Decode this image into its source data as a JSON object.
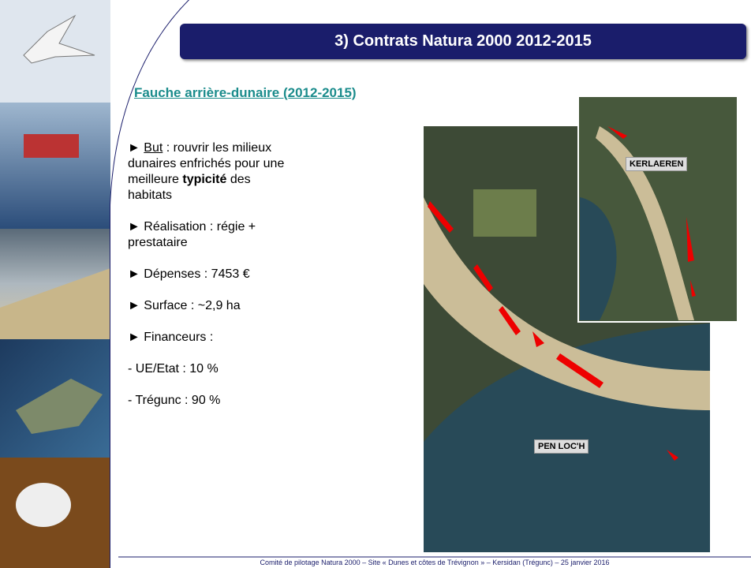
{
  "header": {
    "title": "3) Contrats Natura 2000 2012-2015"
  },
  "section": {
    "title": "Fauche arrière-dunaire (2012-2015)"
  },
  "bullets": [
    {
      "label": "But",
      "text": " : rouvrir les milieux dunaires enfrichés pour une meilleure ",
      "bold": "typicité",
      "end": " des habitats"
    },
    {
      "text": "Réalisation : régie + prestataire"
    },
    {
      "text": "Dépenses : 7453 €"
    },
    {
      "text": "Surface : ~2,9 ha"
    },
    {
      "text": "Financeurs :"
    }
  ],
  "funders": [
    "- UE/Etat : 10 %",
    "- Trégunc : 90 %"
  ],
  "maps": {
    "main_label": "PEN LOC'H",
    "inset_label": "KERLAEREN"
  },
  "footer": "Comité de pilotage Natura 2000 – Site « Dunes et côtes de Trévignon » – Kersidan (Trégunc) – 25 janvier 2016"
}
